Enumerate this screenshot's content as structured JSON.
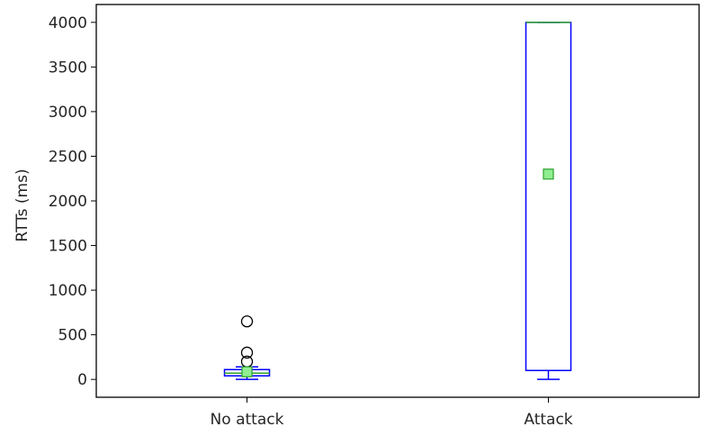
{
  "chart_data": {
    "type": "box",
    "title": "",
    "xlabel": "",
    "ylabel": "RTTs (ms)",
    "ylim": [
      -200,
      4200
    ],
    "yticks": [
      "0",
      "500",
      "1000",
      "1500",
      "2000",
      "2500",
      "3000",
      "3500",
      "4000"
    ],
    "grid": false,
    "categories": [
      "No attack",
      "Attack"
    ],
    "boxes": [
      {
        "category": "No attack",
        "whisker_low": 0,
        "q1": 40,
        "median": 70,
        "q3": 110,
        "whisker_high": 140,
        "mean": 85,
        "outliers": [
          200,
          300,
          650
        ]
      },
      {
        "category": "Attack",
        "whisker_low": 0,
        "q1": 100,
        "median": 4000,
        "q3": 4000,
        "whisker_high": 4000,
        "mean": 2300,
        "outliers": []
      }
    ],
    "colors": {
      "box": "#0000ff",
      "median": "#2ca02c",
      "mean_marker": "#90ee90",
      "mean_edge": "#2ca02c",
      "outlier_edge": "#000000"
    }
  }
}
